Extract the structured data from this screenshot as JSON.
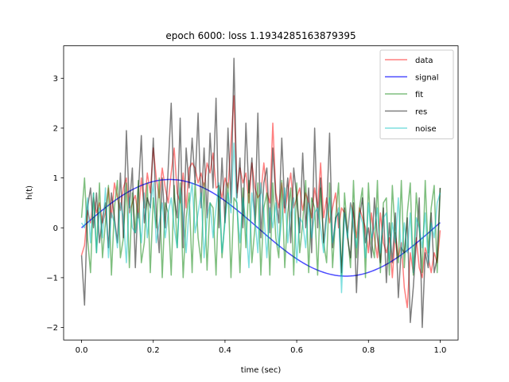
{
  "chart_data": {
    "type": "line",
    "title": "epoch 6000: loss 1.1934285163879395",
    "xlabel": "time (sec)",
    "ylabel": "h(t)",
    "xlim": [
      -0.05,
      1.05
    ],
    "ylim": [
      -2.25,
      3.65
    ],
    "xticks": [
      0.0,
      0.2,
      0.4,
      0.6,
      0.8,
      1.0
    ],
    "xtick_labels": [
      "0.0",
      "0.2",
      "0.4",
      "0.6",
      "0.8",
      "1.0"
    ],
    "yticks": [
      -2,
      -1,
      0,
      1,
      2,
      3
    ],
    "ytick_labels": [
      "−2",
      "−1",
      "0",
      "1",
      "2",
      "3"
    ],
    "grid": false,
    "legend_position": "top-right",
    "series": [
      {
        "name": "data",
        "color": "#ff0000",
        "values": [
          -0.55,
          -0.35,
          0.35,
          0.1,
          0.6,
          0.3,
          0.5,
          0.1,
          0.3,
          0.8,
          0.2,
          0.9,
          0.6,
          0.35,
          0.8,
          1.0,
          0.3,
          0.5,
          0.65,
          0.2,
          1.0,
          0.4,
          1.1,
          0.7,
          1.6,
          1.0,
          0.6,
          1.2,
          0.8,
          0.5,
          1.1,
          1.6,
          0.7,
          0.5,
          1.1,
          0.4,
          1.2,
          1.3,
          1.2,
          0.9,
          1.1,
          0.8,
          1.3,
          1.1,
          1.5,
          0.8,
          0.85,
          0.6,
          1.0,
          0.8,
          1.7,
          2.65,
          0.7,
          1.2,
          0.9,
          1.1,
          0.5,
          1.3,
          0.8,
          0.6,
          0.7,
          1.3,
          0.7,
          0.5,
          2.1,
          0.7,
          0.4,
          0.9,
          0.3,
          0.7,
          1.1,
          0.4,
          0.6,
          0.8,
          0.35,
          0.7,
          0.5,
          0.2,
          0.8,
          0.4,
          1.3,
          0.2,
          0.6,
          0.1,
          0.4,
          0.7,
          0.0,
          0.4,
          0.3,
          -0.1,
          0.5,
          0.3,
          -0.2,
          0.4,
          0.2,
          0.0,
          -0.5,
          0.3,
          -0.2,
          -0.6,
          0.3,
          -0.3,
          -0.5,
          -0.2,
          -1.0,
          -0.1,
          -0.6,
          -0.3,
          -1.2,
          -1.6,
          -0.5,
          -0.9,
          -0.2,
          -0.8,
          -1.0,
          -0.4,
          -0.6,
          -0.9,
          -0.5,
          -0.7,
          -0.05
        ]
      },
      {
        "name": "signal",
        "color": "#0000ff",
        "values": [
          0.0,
          0.052,
          0.104,
          0.156,
          0.207,
          0.258,
          0.308,
          0.357,
          0.404,
          0.451,
          0.497,
          0.54,
          0.583,
          0.623,
          0.662,
          0.699,
          0.733,
          0.766,
          0.796,
          0.824,
          0.85,
          0.873,
          0.894,
          0.913,
          0.929,
          0.942,
          0.953,
          0.961,
          0.966,
          0.969,
          0.969,
          0.966,
          0.961,
          0.953,
          0.942,
          0.929,
          0.913,
          0.894,
          0.873,
          0.85,
          0.824,
          0.796,
          0.766,
          0.733,
          0.699,
          0.662,
          0.623,
          0.583,
          0.54,
          0.497,
          0.451,
          0.404,
          0.357,
          0.308,
          0.258,
          0.207,
          0.156,
          0.104,
          0.052,
          0.0,
          -0.052,
          -0.104,
          -0.156,
          -0.207,
          -0.258,
          -0.308,
          -0.357,
          -0.404,
          -0.451,
          -0.497,
          -0.54,
          -0.583,
          -0.623,
          -0.662,
          -0.699,
          -0.733,
          -0.766,
          -0.796,
          -0.824,
          -0.85,
          -0.873,
          -0.894,
          -0.913,
          -0.929,
          -0.942,
          -0.953,
          -0.961,
          -0.966,
          -0.969,
          -0.969,
          -0.966,
          -0.961,
          -0.953,
          -0.942,
          -0.929,
          -0.913,
          -0.894,
          -0.873,
          -0.85,
          -0.824,
          -0.796,
          -0.766,
          -0.733,
          -0.699,
          -0.662,
          -0.623,
          -0.583,
          -0.54,
          -0.497,
          -0.451,
          -0.404,
          -0.357,
          -0.308,
          -0.258,
          -0.207,
          -0.156,
          -0.104,
          -0.052,
          0.0,
          0.052,
          0.104
        ]
      },
      {
        "name": "fit",
        "color": "#008000",
        "values": [
          0.2,
          1.0,
          -0.2,
          -0.9,
          0.7,
          -0.5,
          0.9,
          -0.6,
          0.1,
          0.85,
          -0.95,
          0.4,
          0.95,
          -0.6,
          -0.2,
          0.9,
          -0.8,
          0.7,
          -0.1,
          0.95,
          -0.7,
          -0.3,
          0.9,
          -0.9,
          0.6,
          0.0,
          1.0,
          -1.0,
          0.5,
          0.3,
          -0.95,
          0.85,
          -0.4,
          0.9,
          -1.0,
          0.2,
          0.7,
          -0.9,
          0.95,
          -0.2,
          -0.7,
          0.9,
          -0.85,
          0.5,
          0.4,
          -0.95,
          0.85,
          -0.6,
          0.2,
          0.9,
          -1.0,
          0.6,
          0.5,
          -0.9,
          0.8,
          -0.4,
          0.95,
          -0.7,
          0.0,
          0.9,
          -0.95,
          0.4,
          0.7,
          -0.95,
          0.9,
          -0.2,
          -0.6,
          0.95,
          -0.8,
          0.3,
          0.8,
          -0.95,
          0.9,
          -0.5,
          0.1,
          0.95,
          -0.9,
          0.6,
          0.4,
          -0.95,
          0.8,
          -0.3,
          -0.7,
          0.9,
          -0.8,
          0.2,
          0.9,
          -0.95,
          0.7,
          -0.1,
          -0.8,
          0.95,
          -0.6,
          0.4,
          0.8,
          -1.0,
          0.9,
          -0.3,
          -0.6,
          0.95,
          -0.9,
          0.5,
          0.6,
          -0.95,
          0.85,
          -0.2,
          -0.7,
          0.95,
          -0.8,
          0.3,
          0.9,
          -0.95,
          0.7,
          0.0,
          -0.9,
          0.95,
          -0.5,
          0.4,
          0.85,
          -0.9,
          0.8
        ]
      },
      {
        "name": "res",
        "color": "#000000",
        "values": [
          -0.55,
          -1.55,
          0.4,
          0.8,
          0.0,
          0.7,
          -0.3,
          0.2,
          0.5,
          -0.4,
          0.7,
          0.2,
          -0.3,
          1.1,
          -0.2,
          1.95,
          0.4,
          1.2,
          -0.8,
          0.7,
          1.85,
          0.1,
          0.6,
          0.4,
          1.8,
          0.3,
          -0.5,
          1.0,
          0.0,
          1.2,
          2.5,
          0.6,
          0.2,
          2.2,
          -0.4,
          1.6,
          0.8,
          1.8,
          0.9,
          2.3,
          0.4,
          1.6,
          0.2,
          1.9,
          0.8,
          2.6,
          0.0,
          1.4,
          0.1,
          2.0,
          0.5,
          3.4,
          0.6,
          1.4,
          0.0,
          2.1,
          0.7,
          1.4,
          0.1,
          2.3,
          -0.2,
          0.9,
          1.2,
          -0.1,
          1.6,
          0.6,
          0.1,
          1.8,
          0.4,
          1.0,
          -0.3,
          1.2,
          0.6,
          -0.1,
          1.5,
          0.0,
          0.8,
          -0.5,
          2.0,
          0.0,
          1.0,
          -0.3,
          0.3,
          1.9,
          -0.4,
          0.2,
          0.3,
          -0.9,
          0.4,
          -0.2,
          -0.6,
          0.5,
          -1.3,
          0.2,
          0.6,
          -0.3,
          0.0,
          -0.6,
          0.6,
          -0.2,
          -0.7,
          0.4,
          -1.1,
          0.1,
          -0.7,
          0.3,
          -1.4,
          -0.4,
          -0.5,
          0.2,
          -1.9,
          -1.2,
          -0.3,
          0.6,
          -2.0,
          -0.5,
          -0.8,
          0.3,
          -0.9,
          -0.6,
          0.8
        ]
      },
      {
        "name": "noise",
        "color": "#00bfbf",
        "values": [
          0.1,
          0.0,
          0.6,
          -0.3,
          0.7,
          -0.5,
          0.4,
          -0.2,
          0.8,
          -0.6,
          0.3,
          0.1,
          -0.4,
          0.5,
          0.2,
          -0.7,
          0.6,
          0.0,
          -0.1,
          0.3,
          -0.3,
          0.7,
          -0.2,
          0.4,
          0.9,
          -0.3,
          0.1,
          0.5,
          -0.2,
          0.3,
          0.6,
          0.0,
          -0.4,
          0.8,
          0.2,
          -0.5,
          0.4,
          0.9,
          -0.1,
          0.3,
          0.7,
          -0.6,
          0.2,
          0.5,
          -0.2,
          0.4,
          0.9,
          -0.5,
          0.1,
          0.7,
          0.3,
          1.7,
          0.4,
          -0.3,
          0.6,
          0.1,
          -0.8,
          0.7,
          0.2,
          -0.5,
          0.9,
          0.3,
          -0.6,
          0.4,
          0.0,
          0.5,
          -0.4,
          0.2,
          0.8,
          -0.3,
          0.3,
          0.6,
          -0.7,
          0.2,
          0.1,
          -0.4,
          0.5,
          -0.2,
          0.3,
          0.4,
          0.0,
          -0.5,
          0.2,
          0.6,
          -0.3,
          0.1,
          0.4,
          -1.3,
          0.3,
          -0.2,
          0.5,
          0.0,
          -0.4,
          0.3,
          0.1,
          -0.6,
          0.5,
          -0.2,
          0.0,
          0.4,
          -0.5,
          0.2,
          0.3,
          -0.7,
          0.1,
          -0.3,
          0.6,
          -0.6,
          0.1,
          -0.5,
          0.3,
          -0.9,
          0.2,
          0.0,
          -0.4,
          0.3,
          -0.7,
          0.1,
          -0.2,
          0.5,
          0.7
        ]
      }
    ]
  }
}
